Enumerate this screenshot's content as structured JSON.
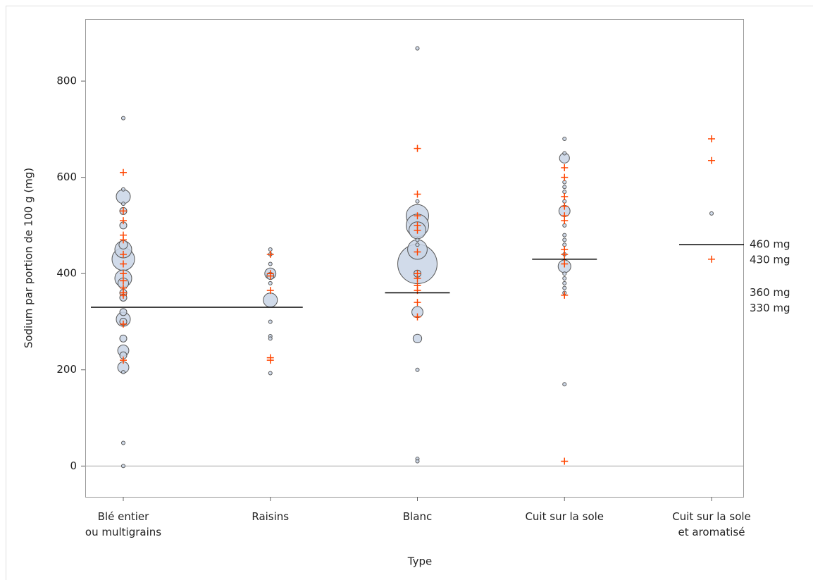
{
  "chart_data": {
    "type": "scatter",
    "xlabel": "Type",
    "ylabel": "Sodium par portion de 100 g (mg)",
    "categories": [
      "Blé entier\nou multigrains",
      "Raisins",
      "Blanc",
      "Cuit sur la sole",
      "Cuit sur la sole\net aromatisé"
    ],
    "ylim": [
      -64,
      929
    ],
    "yticks": [
      0,
      200,
      400,
      600,
      800
    ],
    "bubble_color": "#c9d5e6",
    "bubble_edge": "#555555",
    "marker_color": "#ff4500",
    "groups": [
      {
        "y": [
          723,
          48,
          0,
          575,
          545,
          195,
          560,
          530,
          500,
          460,
          450,
          430,
          390,
          380,
          360,
          350,
          320,
          305,
          300,
          265,
          240,
          230,
          205
        ],
        "size": [
          1,
          1,
          1,
          1,
          1,
          1,
          16,
          4,
          4,
          6,
          23,
          41,
          23,
          9,
          4,
          4,
          4,
          16,
          4,
          4,
          10,
          4,
          10
        ],
        "plus": [
          610,
          530,
          510,
          480,
          470,
          440,
          420,
          400,
          385,
          370,
          360,
          355,
          295,
          220
        ]
      },
      {
        "y": [
          450,
          440,
          420,
          380,
          300,
          270,
          265,
          193,
          400,
          395,
          345
        ],
        "size": [
          1,
          1,
          1,
          1,
          1,
          1,
          1,
          1,
          10,
          4,
          16
        ],
        "plus": [
          440,
          400,
          395,
          365,
          225,
          220
        ]
      },
      {
        "y": [
          868,
          15,
          10,
          200,
          550,
          470,
          460,
          520,
          500,
          490,
          450,
          420,
          400,
          320,
          265
        ],
        "size": [
          1,
          1,
          1,
          1,
          1,
          1,
          1,
          41,
          41,
          23,
          31,
          125,
          4,
          10,
          6
        ],
        "plus": [
          660,
          565,
          520,
          500,
          490,
          445,
          400,
          390,
          375,
          365,
          340,
          310
        ]
      },
      {
        "y": [
          680,
          650,
          590,
          580,
          570,
          550,
          500,
          480,
          470,
          460,
          440,
          400,
          390,
          380,
          370,
          360,
          170,
          640,
          530,
          415
        ],
        "size": [
          1,
          1,
          1,
          1,
          1,
          1,
          1,
          1,
          1,
          1,
          1,
          1,
          1,
          1,
          1,
          1,
          1,
          8,
          10,
          13
        ],
        "plus": [
          620,
          600,
          560,
          540,
          520,
          510,
          450,
          440,
          430,
          420,
          355,
          10
        ]
      },
      {
        "y": [
          525
        ],
        "size": [
          1
        ],
        "plus": [
          680,
          635,
          430
        ]
      }
    ],
    "reference_lines": [
      {
        "value": 330,
        "label": "330 mg",
        "categories": [
          0,
          1
        ]
      },
      {
        "value": 360,
        "label": "360 mg",
        "categories": [
          2
        ]
      },
      {
        "value": 430,
        "label": "430 mg",
        "categories": [
          3
        ]
      },
      {
        "value": 460,
        "label": "460 mg",
        "categories": [
          4
        ]
      }
    ]
  }
}
